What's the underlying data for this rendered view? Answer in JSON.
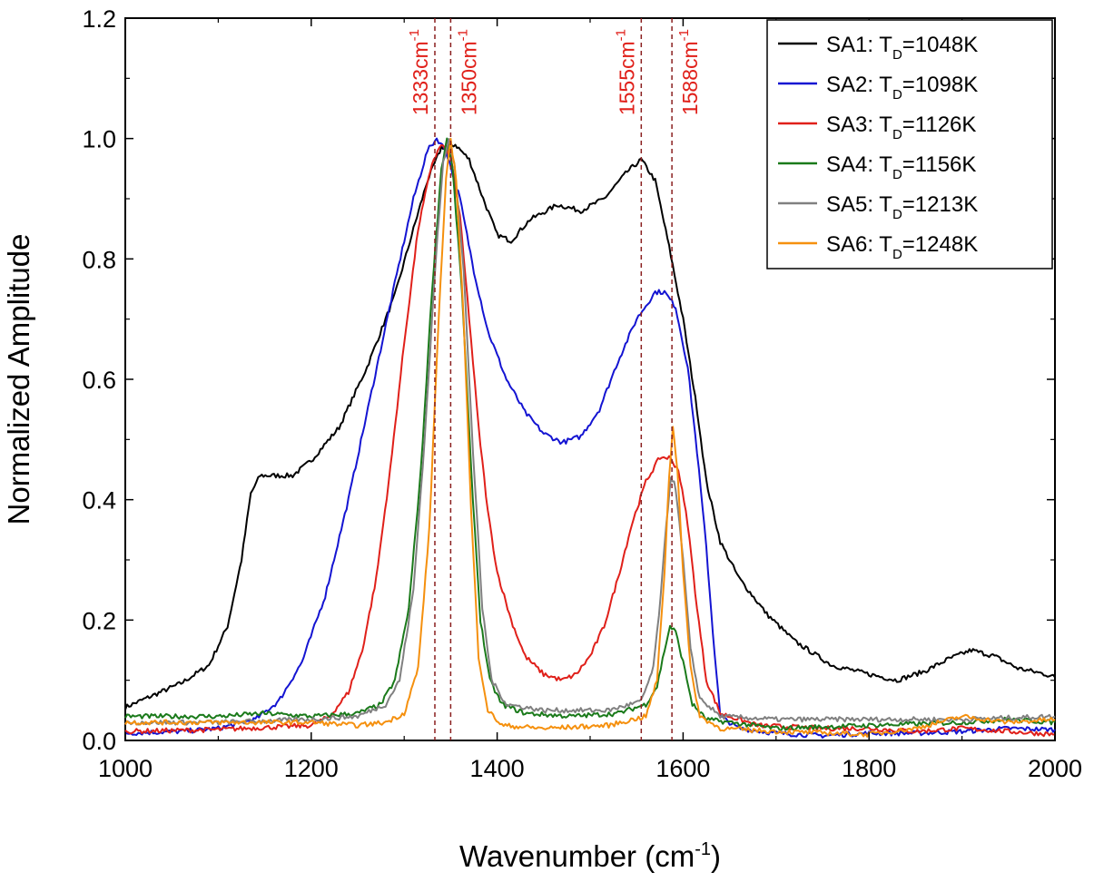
{
  "chart_data": {
    "type": "line",
    "title": "",
    "xlabel": "Wavenumber (cm",
    "xlabel_sup": "-1",
    "xlabel_close": ")",
    "ylabel": "Normalized Amplitude",
    "xlim": [
      1000,
      2000
    ],
    "ylim": [
      0.0,
      1.2
    ],
    "x_ticks": [
      1000,
      1200,
      1400,
      1600,
      1800,
      2000
    ],
    "x_tick_labels": [
      "1000",
      "1200",
      "1400",
      "1600",
      "1800",
      "2000"
    ],
    "y_ticks": [
      0.0,
      0.2,
      0.4,
      0.6,
      0.8,
      1.0,
      1.2
    ],
    "y_tick_labels": [
      "0.0",
      "0.2",
      "0.4",
      "0.6",
      "0.8",
      "1.0",
      "1.2"
    ],
    "grid": false,
    "legend_position": "top-right",
    "peak_color": "#e0201a",
    "peak_line_color": "#8a1f1f",
    "peaks": [
      {
        "x": 1333,
        "label": "1333cm",
        "sup": "-1"
      },
      {
        "x": 1350,
        "label": "1350cm",
        "sup": "-1"
      },
      {
        "x": 1555,
        "label": "1555cm",
        "sup": "-1"
      },
      {
        "x": 1588,
        "label": "1588cm",
        "sup": "-1"
      }
    ],
    "series": [
      {
        "name": "SA1",
        "label_prefix": "SA1: T",
        "label_sub": "D",
        "label_suffix": "=1048K",
        "color": "#000000",
        "points": [
          [
            1000,
            0.055
          ],
          [
            1030,
            0.075
          ],
          [
            1060,
            0.095
          ],
          [
            1090,
            0.125
          ],
          [
            1110,
            0.19
          ],
          [
            1125,
            0.3
          ],
          [
            1135,
            0.41
          ],
          [
            1145,
            0.44
          ],
          [
            1160,
            0.44
          ],
          [
            1180,
            0.44
          ],
          [
            1200,
            0.465
          ],
          [
            1230,
            0.52
          ],
          [
            1260,
            0.62
          ],
          [
            1290,
            0.74
          ],
          [
            1310,
            0.85
          ],
          [
            1325,
            0.93
          ],
          [
            1340,
            0.985
          ],
          [
            1355,
            0.99
          ],
          [
            1370,
            0.965
          ],
          [
            1385,
            0.9
          ],
          [
            1400,
            0.84
          ],
          [
            1415,
            0.83
          ],
          [
            1435,
            0.865
          ],
          [
            1465,
            0.89
          ],
          [
            1490,
            0.88
          ],
          [
            1515,
            0.9
          ],
          [
            1540,
            0.945
          ],
          [
            1555,
            0.965
          ],
          [
            1570,
            0.93
          ],
          [
            1585,
            0.82
          ],
          [
            1600,
            0.7
          ],
          [
            1615,
            0.55
          ],
          [
            1625,
            0.43
          ],
          [
            1640,
            0.33
          ],
          [
            1660,
            0.27
          ],
          [
            1690,
            0.21
          ],
          [
            1720,
            0.165
          ],
          [
            1760,
            0.125
          ],
          [
            1800,
            0.11
          ],
          [
            1830,
            0.1
          ],
          [
            1860,
            0.115
          ],
          [
            1885,
            0.135
          ],
          [
            1910,
            0.15
          ],
          [
            1935,
            0.14
          ],
          [
            1960,
            0.12
          ],
          [
            1990,
            0.11
          ],
          [
            2000,
            0.105
          ]
        ]
      },
      {
        "name": "SA2",
        "label_prefix": "SA2: T",
        "label_sub": "D",
        "label_suffix": "=1098K",
        "color": "#1414d2",
        "points": [
          [
            1000,
            0.012
          ],
          [
            1060,
            0.015
          ],
          [
            1100,
            0.02
          ],
          [
            1140,
            0.035
          ],
          [
            1165,
            0.065
          ],
          [
            1190,
            0.13
          ],
          [
            1215,
            0.24
          ],
          [
            1240,
            0.4
          ],
          [
            1265,
            0.58
          ],
          [
            1290,
            0.76
          ],
          [
            1310,
            0.9
          ],
          [
            1325,
            0.98
          ],
          [
            1335,
            1.0
          ],
          [
            1345,
            0.98
          ],
          [
            1360,
            0.9
          ],
          [
            1375,
            0.78
          ],
          [
            1390,
            0.68
          ],
          [
            1410,
            0.6
          ],
          [
            1430,
            0.545
          ],
          [
            1450,
            0.51
          ],
          [
            1470,
            0.495
          ],
          [
            1490,
            0.505
          ],
          [
            1510,
            0.55
          ],
          [
            1530,
            0.63
          ],
          [
            1550,
            0.7
          ],
          [
            1570,
            0.745
          ],
          [
            1580,
            0.745
          ],
          [
            1592,
            0.72
          ],
          [
            1605,
            0.62
          ],
          [
            1615,
            0.48
          ],
          [
            1625,
            0.32
          ],
          [
            1632,
            0.18
          ],
          [
            1640,
            0.04
          ],
          [
            1660,
            0.02
          ],
          [
            1700,
            0.012
          ],
          [
            1750,
            0.008
          ],
          [
            1800,
            0.012
          ],
          [
            1850,
            0.012
          ],
          [
            1900,
            0.015
          ],
          [
            1950,
            0.02
          ],
          [
            2000,
            0.018
          ]
        ]
      },
      {
        "name": "SA3",
        "label_prefix": "SA3: T",
        "label_sub": "D",
        "label_suffix": "=1126K",
        "color": "#e0201a",
        "points": [
          [
            1000,
            0.015
          ],
          [
            1100,
            0.018
          ],
          [
            1200,
            0.025
          ],
          [
            1220,
            0.04
          ],
          [
            1240,
            0.08
          ],
          [
            1255,
            0.15
          ],
          [
            1270,
            0.27
          ],
          [
            1285,
            0.45
          ],
          [
            1300,
            0.66
          ],
          [
            1315,
            0.85
          ],
          [
            1330,
            0.96
          ],
          [
            1340,
            0.99
          ],
          [
            1350,
            0.97
          ],
          [
            1360,
            0.87
          ],
          [
            1370,
            0.7
          ],
          [
            1380,
            0.52
          ],
          [
            1390,
            0.38
          ],
          [
            1400,
            0.28
          ],
          [
            1415,
            0.2
          ],
          [
            1430,
            0.14
          ],
          [
            1450,
            0.11
          ],
          [
            1470,
            0.1
          ],
          [
            1485,
            0.11
          ],
          [
            1500,
            0.14
          ],
          [
            1515,
            0.19
          ],
          [
            1530,
            0.27
          ],
          [
            1545,
            0.36
          ],
          [
            1560,
            0.43
          ],
          [
            1575,
            0.47
          ],
          [
            1585,
            0.47
          ],
          [
            1595,
            0.45
          ],
          [
            1605,
            0.36
          ],
          [
            1615,
            0.22
          ],
          [
            1625,
            0.1
          ],
          [
            1640,
            0.045
          ],
          [
            1680,
            0.025
          ],
          [
            1750,
            0.02
          ],
          [
            1800,
            0.02
          ],
          [
            1850,
            0.015
          ],
          [
            1900,
            0.02
          ],
          [
            1950,
            0.015
          ],
          [
            2000,
            0.01
          ]
        ]
      },
      {
        "name": "SA4",
        "label_prefix": "SA4: T",
        "label_sub": "D",
        "label_suffix": "=1156K",
        "color": "#1a7a1a",
        "points": [
          [
            1000,
            0.04
          ],
          [
            1100,
            0.04
          ],
          [
            1150,
            0.045
          ],
          [
            1200,
            0.04
          ],
          [
            1250,
            0.045
          ],
          [
            1275,
            0.06
          ],
          [
            1290,
            0.1
          ],
          [
            1305,
            0.22
          ],
          [
            1318,
            0.45
          ],
          [
            1330,
            0.75
          ],
          [
            1340,
            0.95
          ],
          [
            1346,
            1.0
          ],
          [
            1352,
            0.95
          ],
          [
            1362,
            0.75
          ],
          [
            1372,
            0.45
          ],
          [
            1382,
            0.2
          ],
          [
            1392,
            0.1
          ],
          [
            1405,
            0.06
          ],
          [
            1430,
            0.045
          ],
          [
            1480,
            0.04
          ],
          [
            1530,
            0.045
          ],
          [
            1560,
            0.06
          ],
          [
            1572,
            0.09
          ],
          [
            1580,
            0.15
          ],
          [
            1586,
            0.19
          ],
          [
            1592,
            0.18
          ],
          [
            1600,
            0.13
          ],
          [
            1610,
            0.06
          ],
          [
            1625,
            0.035
          ],
          [
            1700,
            0.02
          ],
          [
            1800,
            0.025
          ],
          [
            1900,
            0.03
          ],
          [
            1950,
            0.035
          ],
          [
            2000,
            0.03
          ]
        ]
      },
      {
        "name": "SA5",
        "label_prefix": "SA5: T",
        "label_sub": "D",
        "label_suffix": "=1213K",
        "color": "#808080",
        "points": [
          [
            1000,
            0.03
          ],
          [
            1100,
            0.03
          ],
          [
            1200,
            0.035
          ],
          [
            1250,
            0.04
          ],
          [
            1280,
            0.06
          ],
          [
            1295,
            0.1
          ],
          [
            1310,
            0.25
          ],
          [
            1322,
            0.5
          ],
          [
            1334,
            0.8
          ],
          [
            1342,
            0.96
          ],
          [
            1348,
            1.0
          ],
          [
            1354,
            0.96
          ],
          [
            1364,
            0.78
          ],
          [
            1374,
            0.48
          ],
          [
            1384,
            0.22
          ],
          [
            1394,
            0.1
          ],
          [
            1410,
            0.06
          ],
          [
            1450,
            0.05
          ],
          [
            1520,
            0.05
          ],
          [
            1555,
            0.065
          ],
          [
            1568,
            0.12
          ],
          [
            1576,
            0.24
          ],
          [
            1582,
            0.36
          ],
          [
            1587,
            0.44
          ],
          [
            1592,
            0.42
          ],
          [
            1600,
            0.3
          ],
          [
            1608,
            0.15
          ],
          [
            1618,
            0.07
          ],
          [
            1640,
            0.04
          ],
          [
            1700,
            0.035
          ],
          [
            1800,
            0.035
          ],
          [
            1900,
            0.035
          ],
          [
            2000,
            0.04
          ]
        ]
      },
      {
        "name": "SA6",
        "label_prefix": "SA6: T",
        "label_sub": "D",
        "label_suffix": "=1248K",
        "color": "#f5900e",
        "points": [
          [
            1000,
            0.03
          ],
          [
            1100,
            0.03
          ],
          [
            1200,
            0.03
          ],
          [
            1250,
            0.025
          ],
          [
            1280,
            0.03
          ],
          [
            1300,
            0.045
          ],
          [
            1315,
            0.12
          ],
          [
            1327,
            0.35
          ],
          [
            1337,
            0.7
          ],
          [
            1345,
            0.93
          ],
          [
            1350,
            1.0
          ],
          [
            1356,
            0.93
          ],
          [
            1364,
            0.7
          ],
          [
            1372,
            0.38
          ],
          [
            1380,
            0.14
          ],
          [
            1390,
            0.05
          ],
          [
            1405,
            0.025
          ],
          [
            1450,
            0.02
          ],
          [
            1520,
            0.025
          ],
          [
            1560,
            0.04
          ],
          [
            1572,
            0.1
          ],
          [
            1580,
            0.28
          ],
          [
            1585,
            0.44
          ],
          [
            1589,
            0.52
          ],
          [
            1594,
            0.45
          ],
          [
            1600,
            0.28
          ],
          [
            1608,
            0.12
          ],
          [
            1618,
            0.04
          ],
          [
            1640,
            0.02
          ],
          [
            1700,
            0.015
          ],
          [
            1800,
            0.01
          ],
          [
            1850,
            0.02
          ],
          [
            1900,
            0.04
          ],
          [
            1950,
            0.03
          ],
          [
            2000,
            0.035
          ]
        ]
      }
    ]
  }
}
